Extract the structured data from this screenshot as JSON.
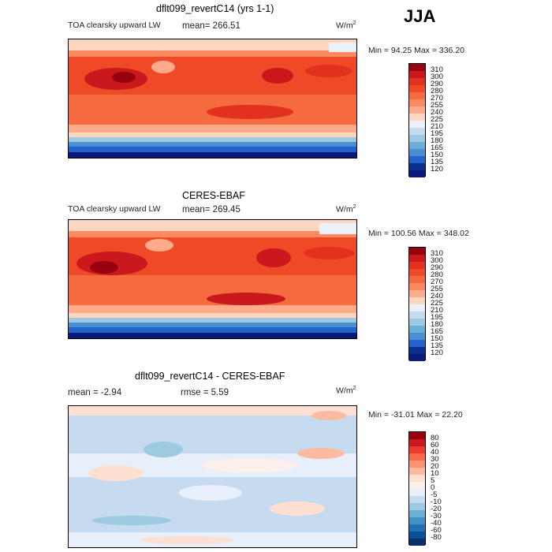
{
  "season": "JJA",
  "units_prefix": "W/m",
  "units_exp": "2",
  "panels": [
    {
      "title": "dflt099_revertC14 (yrs 1-1)",
      "field": "TOA clearsky upward LW",
      "stat1": "mean= 266.51",
      "stat2": "",
      "minmax": "Min =  94.25 Max = 336.20",
      "levels": [
        "310",
        "300",
        "290",
        "280",
        "270",
        "255",
        "240",
        "225",
        "210",
        "195",
        "180",
        "165",
        "150",
        "135",
        "120"
      ],
      "colors": [
        "#99000d",
        "#cb181d",
        "#e2311f",
        "#ef4a27",
        "#f66a3f",
        "#fb8a60",
        "#fcac8a",
        "#fdd6c0",
        "#eaf1fb",
        "#c6dbef",
        "#9ecae1",
        "#6baed6",
        "#4a8fd4",
        "#2463cc",
        "#08308f",
        "#0a1a7a"
      ]
    },
    {
      "title": "CERES-EBAF",
      "field": "TOA clearsky upward LW",
      "stat1": "mean= 269.45",
      "stat2": "",
      "minmax": "Min = 100.56 Max = 348.02",
      "levels": [
        "310",
        "300",
        "290",
        "280",
        "270",
        "255",
        "240",
        "225",
        "210",
        "195",
        "180",
        "165",
        "150",
        "135",
        "120"
      ],
      "colors": [
        "#99000d",
        "#cb181d",
        "#e2311f",
        "#ef4a27",
        "#f66a3f",
        "#fb8a60",
        "#fcac8a",
        "#fdd6c0",
        "#eaf1fb",
        "#c6dbef",
        "#9ecae1",
        "#6baed6",
        "#4a8fd4",
        "#2463cc",
        "#08308f",
        "#0a1a7a"
      ]
    },
    {
      "title": "dflt099_revertC14 - CERES-EBAF",
      "field": "",
      "stat1": "mean =  -2.94",
      "stat2": "rmse =   5.59",
      "minmax": "Min = -31.01 Max =  22.20",
      "levels": [
        "80",
        "60",
        "40",
        "30",
        "20",
        "10",
        "5",
        "0",
        "-5",
        "-10",
        "-20",
        "-30",
        "-40",
        "-60",
        "-80"
      ],
      "colors": [
        "#99000d",
        "#cb181d",
        "#ef3b2c",
        "#fb6a4a",
        "#fc9272",
        "#fcbba1",
        "#fde0d2",
        "#fdf0ea",
        "#e6effa",
        "#c6dbef",
        "#9ecae1",
        "#6baed6",
        "#4292c6",
        "#2171b5",
        "#08519c",
        "#08306b"
      ]
    }
  ]
}
